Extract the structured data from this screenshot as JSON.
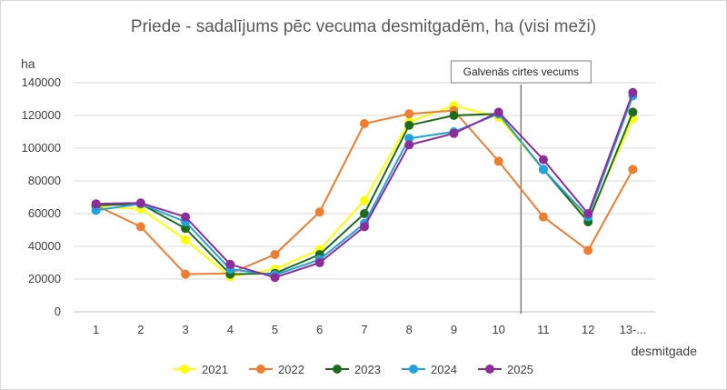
{
  "chart_data": {
    "type": "line",
    "title": "Priede - sadalījums pēc vecuma desmitgadēm, ha (visi meži)",
    "ylabel": "ha",
    "xlabel": "desmitgade",
    "categories": [
      "1",
      "2",
      "3",
      "4",
      "5",
      "6",
      "7",
      "8",
      "9",
      "10",
      "11",
      "12",
      "13-..."
    ],
    "ylim": [
      0,
      140000
    ],
    "yticks": [
      0,
      20000,
      40000,
      60000,
      80000,
      100000,
      120000,
      140000
    ],
    "ytick_labels": [
      "0",
      "20000",
      "40000",
      "60000",
      "80000",
      "100000",
      "120000",
      "140000"
    ],
    "grid": true,
    "legend_position": "bottom",
    "annotation": {
      "label": "Galvenās cirtes vecums",
      "at_between_categories": [
        "10",
        "11"
      ]
    },
    "series": [
      {
        "name": "2021",
        "color": "#ffff00",
        "values": [
          64000,
          63000,
          44000,
          21500,
          26000,
          38000,
          68000,
          116000,
          126000,
          119000,
          87000,
          57000,
          118000
        ]
      },
      {
        "name": "2022",
        "color": "#ed7d31",
        "values": [
          65000,
          52000,
          23000,
          23500,
          35000,
          61000,
          115000,
          121000,
          123000,
          92000,
          58000,
          37500,
          87000
        ]
      },
      {
        "name": "2023",
        "color": "#1e6b1e",
        "values": [
          65000,
          66000,
          51000,
          23000,
          23500,
          35000,
          60000,
          114000,
          120000,
          121000,
          87000,
          55000,
          122000
        ]
      },
      {
        "name": "2024",
        "color": "#1fa3e0",
        "values": [
          62000,
          66000,
          55000,
          26000,
          22500,
          32000,
          54000,
          106000,
          110000,
          121000,
          87000,
          58000,
          132000
        ]
      },
      {
        "name": "2025",
        "color": "#8e2c9a",
        "values": [
          66000,
          66500,
          58000,
          29000,
          21000,
          30000,
          52000,
          102000,
          109000,
          122000,
          93000,
          60000,
          134000
        ]
      }
    ]
  }
}
